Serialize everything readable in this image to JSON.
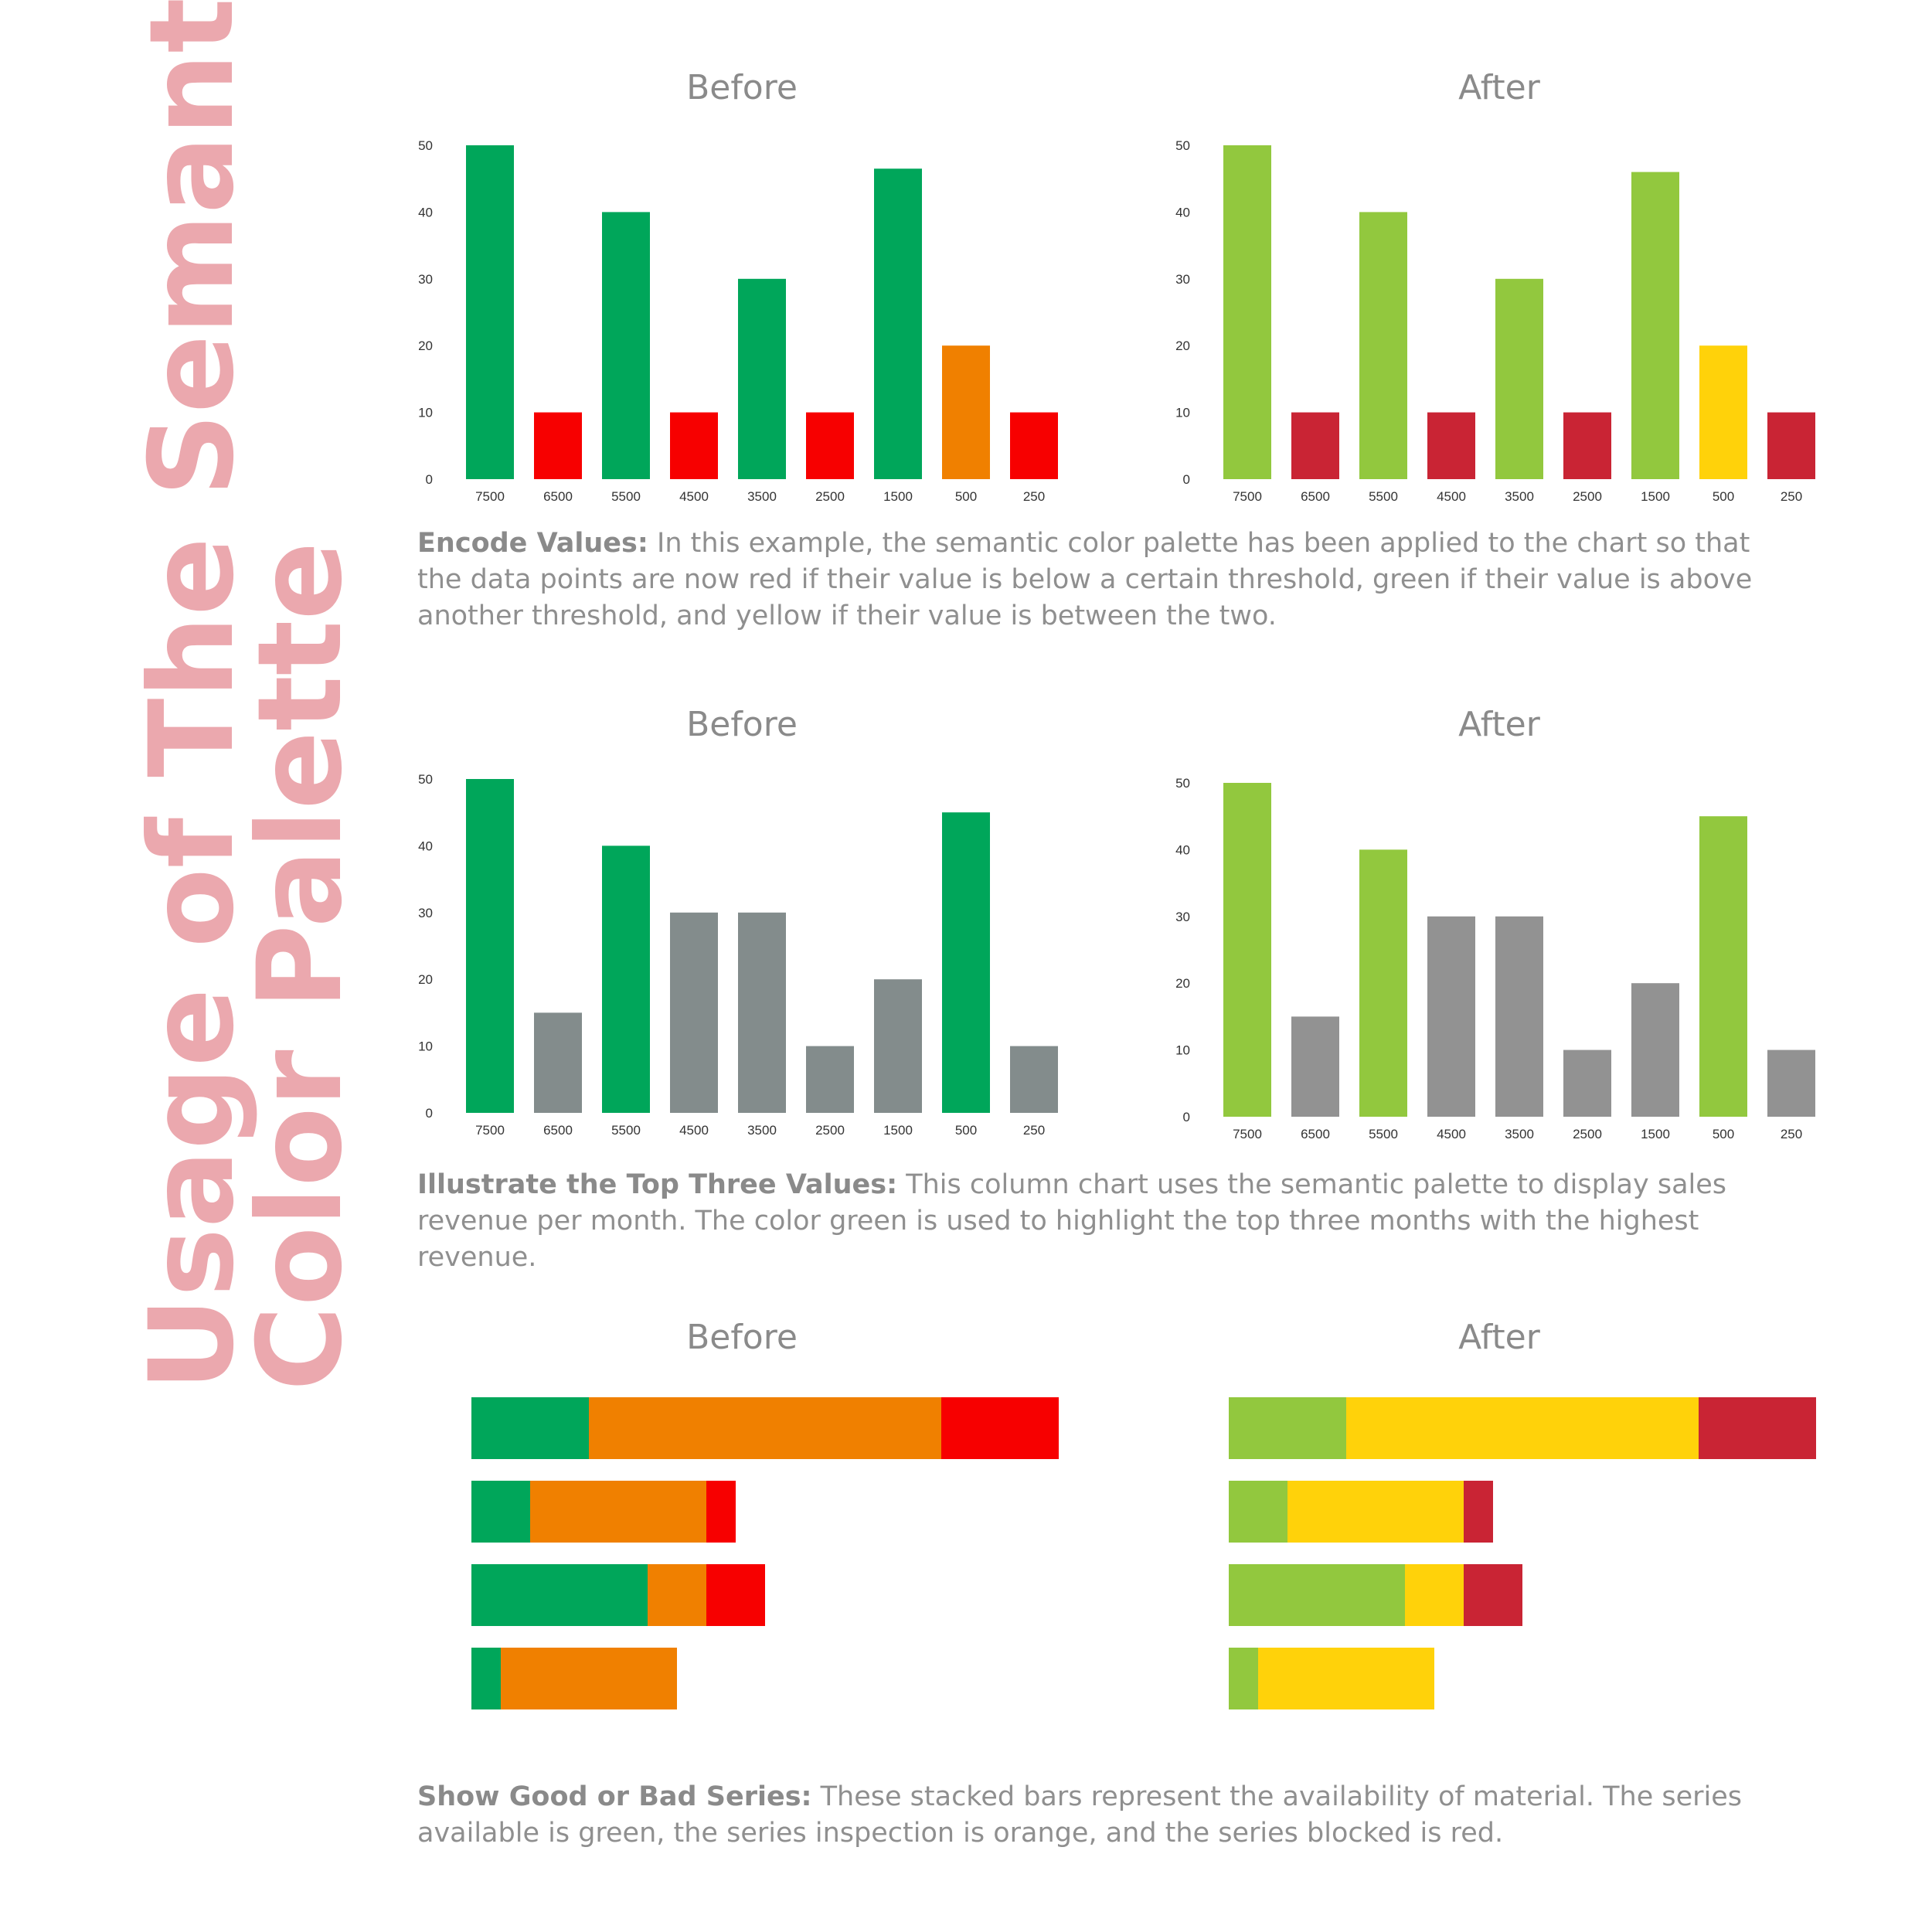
{
  "page": {
    "side_title": [
      "Usage of The Semantic",
      "Color Palette"
    ],
    "side_title_color": "#eba8ae"
  },
  "sections": [
    {
      "before_title": "Before",
      "after_title": "After",
      "caption_lead": "Encode Values:",
      "caption_text": " In this example, the semantic color palette has been applied to the chart so that the data points are now red if their value is below a certain threshold, green if their value is above another threshold, and yellow if their value is between the two."
    },
    {
      "before_title": "Before",
      "after_title": "After",
      "caption_lead": "Illustrate the Top Three Values:",
      "caption_text": " This column chart uses the semantic palette to display sales revenue per month. The color green is used to highlight the top three months with the highest revenue."
    },
    {
      "before_title": "Before",
      "after_title": "After",
      "caption_lead": "Show Good or Bad Series:",
      "caption_text": " These stacked bars represent the availability of material. The series available is green, the series inspection is orange, and the series blocked is red."
    }
  ],
  "chart_data": [
    {
      "id": "encode-before",
      "type": "bar",
      "categories": [
        "7500",
        "6500",
        "5500",
        "4500",
        "3500",
        "2500",
        "1500",
        "500",
        "250"
      ],
      "values": [
        50,
        10,
        40,
        10,
        30,
        10,
        46.5,
        20,
        10
      ],
      "colors": [
        "#00a65a",
        "#f70000",
        "#00a65a",
        "#f70000",
        "#00a65a",
        "#f70000",
        "#00a65a",
        "#f08000",
        "#f70000"
      ],
      "yticks": [
        0,
        10,
        20,
        30,
        40,
        50
      ],
      "ylim": [
        0,
        50
      ]
    },
    {
      "id": "encode-after",
      "type": "bar",
      "categories": [
        "7500",
        "6500",
        "5500",
        "4500",
        "3500",
        "2500",
        "1500",
        "500",
        "250"
      ],
      "values": [
        50,
        10,
        40,
        10,
        30,
        10,
        46,
        20,
        10
      ],
      "colors": [
        "#92c83e",
        "#c92434",
        "#92c83e",
        "#c92434",
        "#92c83e",
        "#c92434",
        "#92c83e",
        "#ffd20a",
        "#c92434"
      ],
      "yticks": [
        0,
        10,
        20,
        30,
        40,
        50
      ],
      "ylim": [
        0,
        50
      ]
    },
    {
      "id": "top-before",
      "type": "bar",
      "categories": [
        "7500",
        "6500",
        "5500",
        "4500",
        "3500",
        "2500",
        "1500",
        "500",
        "250"
      ],
      "values": [
        50,
        15,
        40,
        30,
        30,
        10,
        20,
        45,
        10
      ],
      "colors": [
        "#00a65a",
        "#838c8c",
        "#00a65a",
        "#838c8c",
        "#838c8c",
        "#838c8c",
        "#838c8c",
        "#00a65a",
        "#838c8c"
      ],
      "yticks": [
        0,
        10,
        20,
        30,
        40,
        50
      ],
      "ylim": [
        0,
        50
      ]
    },
    {
      "id": "top-after",
      "type": "bar",
      "categories": [
        "7500",
        "6500",
        "5500",
        "4500",
        "3500",
        "2500",
        "1500",
        "500",
        "250"
      ],
      "values": [
        50,
        15,
        40,
        30,
        30,
        10,
        20,
        45,
        10
      ],
      "colors": [
        "#92c83e",
        "#929292",
        "#92c83e",
        "#929292",
        "#929292",
        "#929292",
        "#929292",
        "#92c83e",
        "#929292"
      ],
      "yticks": [
        0,
        10,
        20,
        30,
        40,
        50
      ],
      "ylim": [
        0,
        50
      ]
    },
    {
      "id": "series-before",
      "type": "bar",
      "orientation": "horizontal",
      "stacked": true,
      "rows": 4,
      "segments": [
        {
          "values": [
            20,
            10,
            30,
            5
          ],
          "color": "#00a65a"
        },
        {
          "values": [
            60,
            30,
            10,
            30
          ],
          "color": "#f08000"
        },
        {
          "values": [
            20,
            5,
            10,
            0
          ],
          "color": "#f70000"
        }
      ],
      "xticks": [
        0,
        20,
        40,
        60,
        80,
        100
      ],
      "xlim": [
        0,
        100
      ]
    },
    {
      "id": "series-after",
      "type": "bar",
      "orientation": "horizontal",
      "stacked": true,
      "rows": 4,
      "segments": [
        {
          "values": [
            20,
            10,
            30,
            5
          ],
          "color": "#92c83e"
        },
        {
          "values": [
            60,
            30,
            10,
            30
          ],
          "color": "#ffd20a"
        },
        {
          "values": [
            20,
            5,
            10,
            0
          ],
          "color": "#c92434"
        }
      ],
      "xticks": [
        0,
        20,
        40,
        60,
        80,
        100
      ],
      "xlim": [
        0,
        100
      ]
    }
  ]
}
